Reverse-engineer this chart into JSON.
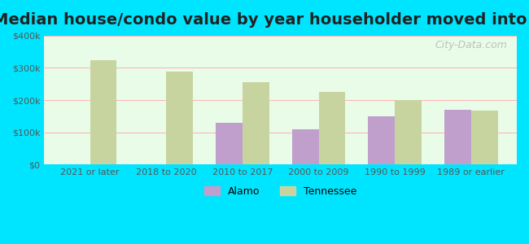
{
  "title": "Median house/condo value by year householder moved into unit",
  "categories": [
    "2021 or later",
    "2018 to 2020",
    "2010 to 2017",
    "2000 to 2009",
    "1990 to 1999",
    "1989 or earlier"
  ],
  "alamo_values": [
    null,
    null,
    130000,
    110000,
    150000,
    170000
  ],
  "tennessee_values": [
    325000,
    288000,
    255000,
    225000,
    200000,
    168000
  ],
  "alamo_color": "#c09fcd",
  "tennessee_color": "#c8d4a0",
  "background_color": "#e8fce8",
  "outer_background": "#00e5ff",
  "ylim": [
    0,
    400000
  ],
  "yticks": [
    0,
    100000,
    200000,
    300000,
    400000
  ],
  "ytick_labels": [
    "$0",
    "$100k",
    "$200k",
    "$300k",
    "$400k"
  ],
  "bar_width": 0.35,
  "title_fontsize": 14,
  "legend_labels": [
    "Alamo",
    "Tennessee"
  ],
  "watermark": "City-Data.com"
}
